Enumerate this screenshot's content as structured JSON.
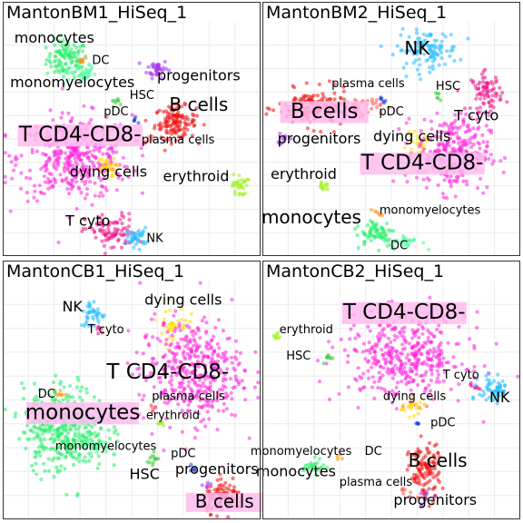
{
  "palette": {
    "monocytes": "#22ee66",
    "monomyelocytes": "#44ff99",
    "DC": "#ff8800",
    "progenitors": "#aa33ee",
    "HSC": "#33cc33",
    "pDC": "#1133dd",
    "B cells": "#ee1111",
    "plasma cells": "#ff5555",
    "T CD4-CD8-": "#ff22dd",
    "dying cells": "#ffdd00",
    "erythroid": "#99ee11",
    "T cyto": "#ee1188",
    "NK": "#22bbff",
    "label_box": "#ffbbee"
  },
  "chart_data": [
    {
      "type": "scatter",
      "title": "MantonBM1_HiSeq_1",
      "xlim": [
        0,
        100
      ],
      "ylim": [
        0,
        100
      ],
      "grid": true,
      "clusters": [
        {
          "name": "monocytes",
          "x": 25,
          "y": 84,
          "sx": 4,
          "sy": 4,
          "n": 110
        },
        {
          "name": "monomyelocytes",
          "x": 30,
          "y": 78,
          "sx": 3,
          "sy": 2,
          "n": 30
        },
        {
          "name": "DC",
          "x": 31,
          "y": 84,
          "sx": 1,
          "sy": 1,
          "n": 6
        },
        {
          "name": "progenitors",
          "x": 60,
          "y": 80,
          "sx": 2,
          "sy": 2,
          "n": 40
        },
        {
          "name": "HSC",
          "x": 44,
          "y": 66,
          "sx": 1,
          "sy": 1,
          "n": 8
        },
        {
          "name": "pDC",
          "x": 51,
          "y": 58,
          "sx": 0.6,
          "sy": 0.6,
          "n": 5
        },
        {
          "name": "B cells",
          "x": 67,
          "y": 57,
          "sx": 4,
          "sy": 3.5,
          "n": 130
        },
        {
          "name": "plasma cells",
          "x": 57,
          "y": 50,
          "sx": 1,
          "sy": 1,
          "n": 6
        },
        {
          "name": "T CD4-CD8-",
          "x": 28,
          "y": 42,
          "sx": 11,
          "sy": 9,
          "n": 420
        },
        {
          "name": "dying cells",
          "x": 40,
          "y": 38,
          "sx": 2,
          "sy": 2,
          "n": 30
        },
        {
          "name": "erythroid",
          "x": 92,
          "y": 30,
          "sx": 1.5,
          "sy": 2.5,
          "n": 30
        },
        {
          "name": "T cyto",
          "x": 42,
          "y": 10,
          "sx": 5,
          "sy": 4,
          "n": 90
        },
        {
          "name": "NK",
          "x": 52,
          "y": 8,
          "sx": 2,
          "sy": 2,
          "n": 40
        }
      ],
      "labels": [
        {
          "text": "monocytes",
          "x": 20,
          "y": 91,
          "size": "md"
        },
        {
          "text": "DC",
          "x": 38,
          "y": 82,
          "size": "sm"
        },
        {
          "text": "progenitors",
          "x": 76,
          "y": 75,
          "size": "md"
        },
        {
          "text": "monomyelocytes",
          "x": 27,
          "y": 72,
          "size": "md"
        },
        {
          "text": "HSC",
          "x": 54,
          "y": 67,
          "size": "sm"
        },
        {
          "text": "B cells",
          "x": 76,
          "y": 62,
          "size": "lg"
        },
        {
          "text": "pDC",
          "x": 44,
          "y": 60,
          "size": "sm"
        },
        {
          "text": "plasma cells",
          "x": 68,
          "y": 48,
          "size": "sm"
        },
        {
          "text": "T CD4-CD8-",
          "x": 30,
          "y": 49,
          "size": "xl",
          "boxed": true
        },
        {
          "text": "dying cells",
          "x": 41,
          "y": 34,
          "size": "md"
        },
        {
          "text": "erythroid",
          "x": 75,
          "y": 32,
          "size": "md"
        },
        {
          "text": "T cyto",
          "x": 33,
          "y": 13,
          "size": "md"
        },
        {
          "text": "NK",
          "x": 59,
          "y": 6,
          "size": "sm"
        }
      ]
    },
    {
      "type": "scatter",
      "title": "MantonBM2_HiSeq_1",
      "xlim": [
        0,
        100
      ],
      "ylim": [
        0,
        100
      ],
      "grid": true,
      "clusters": [
        {
          "name": "NK",
          "x": 64,
          "y": 88,
          "sx": 6,
          "sy": 4,
          "n": 110
        },
        {
          "name": "HSC",
          "x": 68,
          "y": 68,
          "sx": 1,
          "sy": 1,
          "n": 6
        },
        {
          "name": "pDC",
          "x": 47,
          "y": 66,
          "sx": 0.8,
          "sy": 0.8,
          "n": 6
        },
        {
          "name": "T cyto",
          "x": 87,
          "y": 70,
          "sx": 3,
          "sy": 4,
          "n": 80
        },
        {
          "name": "plasma cells",
          "x": 38,
          "y": 64,
          "sx": 4,
          "sy": 2,
          "n": 40
        },
        {
          "name": "B cells",
          "x": 20,
          "y": 63,
          "sx": 7,
          "sy": 4,
          "n": 170
        },
        {
          "name": "progenitors",
          "x": 8,
          "y": 50,
          "sx": 1.5,
          "sy": 1.5,
          "n": 10
        },
        {
          "name": "dying cells",
          "x": 60,
          "y": 48,
          "sx": 2,
          "sy": 2,
          "n": 25
        },
        {
          "name": "T CD4-CD8-",
          "x": 74,
          "y": 44,
          "sx": 7,
          "sy": 8,
          "n": 300
        },
        {
          "name": "erythroid",
          "x": 24,
          "y": 30,
          "sx": 1,
          "sy": 1.5,
          "n": 12
        },
        {
          "name": "monocytes",
          "x": 44,
          "y": 10,
          "sx": 4,
          "sy": 3,
          "n": 70
        },
        {
          "name": "monomyelocytes",
          "x": 56,
          "y": 6,
          "sx": 3,
          "sy": 1.5,
          "n": 25
        },
        {
          "name": "DC",
          "x": 45,
          "y": 18,
          "sx": 0.8,
          "sy": 0.8,
          "n": 6
        }
      ],
      "labels": [
        {
          "text": "NK",
          "x": 60,
          "y": 86,
          "size": "lg"
        },
        {
          "text": "plasma cells",
          "x": 41,
          "y": 72,
          "size": "sm"
        },
        {
          "text": "HSC",
          "x": 72,
          "y": 71,
          "size": "sm"
        },
        {
          "text": "B cells",
          "x": 24,
          "y": 59,
          "size": "xl",
          "boxed": true
        },
        {
          "text": "pDC",
          "x": 50,
          "y": 60,
          "size": "sm"
        },
        {
          "text": "T cyto",
          "x": 83,
          "y": 58,
          "size": "md"
        },
        {
          "text": "progenitors",
          "x": 22,
          "y": 48,
          "size": "md"
        },
        {
          "text": "dying cells",
          "x": 58,
          "y": 49,
          "size": "md"
        },
        {
          "text": "T CD4-CD8-",
          "x": 62,
          "y": 37,
          "size": "xl",
          "boxed": true
        },
        {
          "text": "erythroid",
          "x": 16,
          "y": 33,
          "size": "md"
        },
        {
          "text": "monomyelocytes",
          "x": 65,
          "y": 18,
          "size": "sm"
        },
        {
          "text": "monocytes",
          "x": 19,
          "y": 14,
          "size": "lg"
        },
        {
          "text": "DC",
          "x": 53,
          "y": 3,
          "size": "sm"
        }
      ]
    },
    {
      "type": "scatter",
      "title": "MantonCB1_HiSeq_1",
      "xlim": [
        0,
        100
      ],
      "ylim": [
        0,
        100
      ],
      "grid": true,
      "clusters": [
        {
          "name": "NK",
          "x": 35,
          "y": 86,
          "sx": 2.5,
          "sy": 3,
          "n": 40
        },
        {
          "name": "T cyto",
          "x": 38,
          "y": 80,
          "sx": 1,
          "sy": 1,
          "n": 6
        },
        {
          "name": "dying cells",
          "x": 66,
          "y": 82,
          "sx": 3,
          "sy": 4,
          "n": 40
        },
        {
          "name": "T CD4-CD8-",
          "x": 73,
          "y": 62,
          "sx": 10,
          "sy": 11,
          "n": 420
        },
        {
          "name": "plasma cells",
          "x": 58,
          "y": 46,
          "sx": 1,
          "sy": 1,
          "n": 6
        },
        {
          "name": "erythroid",
          "x": 62,
          "y": 40,
          "sx": 1,
          "sy": 1,
          "n": 6
        },
        {
          "name": "DC",
          "x": 22,
          "y": 53,
          "sx": 1,
          "sy": 1,
          "n": 8
        },
        {
          "name": "monocytes",
          "x": 24,
          "y": 38,
          "sx": 8,
          "sy": 9,
          "n": 380
        },
        {
          "name": "monomyelocytes",
          "x": 36,
          "y": 30,
          "sx": 3,
          "sy": 2,
          "n": 30
        },
        {
          "name": "HSC",
          "x": 58,
          "y": 25,
          "sx": 1,
          "sy": 2,
          "n": 12
        },
        {
          "name": "pDC",
          "x": 74,
          "y": 21,
          "sx": 1,
          "sy": 1,
          "n": 5
        },
        {
          "name": "progenitors",
          "x": 79,
          "y": 14,
          "sx": 1,
          "sy": 1,
          "n": 6
        },
        {
          "name": "B cells",
          "x": 86,
          "y": 9,
          "sx": 4,
          "sy": 3,
          "n": 110
        }
      ],
      "labels": [
        {
          "text": "NK",
          "x": 27,
          "y": 87,
          "size": "md"
        },
        {
          "text": "dying cells",
          "x": 70,
          "y": 90,
          "size": "md"
        },
        {
          "text": "T cyto",
          "x": 40,
          "y": 78,
          "size": "sm"
        },
        {
          "text": "T CD4-CD8-",
          "x": 64,
          "y": 59,
          "size": "xl"
        },
        {
          "text": "DC",
          "x": 17,
          "y": 51,
          "size": "sm"
        },
        {
          "text": "plasma cells",
          "x": 72,
          "y": 50,
          "size": "sm"
        },
        {
          "text": "monocytes",
          "x": 31,
          "y": 42,
          "size": "xl",
          "boxed": true
        },
        {
          "text": "erythroid",
          "x": 66,
          "y": 42,
          "size": "sm"
        },
        {
          "text": "monomyelocytes",
          "x": 40,
          "y": 29,
          "size": "sm"
        },
        {
          "text": "pDC",
          "x": 70,
          "y": 26,
          "size": "sm"
        },
        {
          "text": "HSC",
          "x": 55,
          "y": 17,
          "size": "md"
        },
        {
          "text": "progenitors",
          "x": 83,
          "y": 19,
          "size": "md"
        },
        {
          "text": "B cells",
          "x": 86,
          "y": 5,
          "size": "lg",
          "boxed": true
        }
      ]
    },
    {
      "type": "scatter",
      "title": "MantonCB2_HiSeq_1",
      "xlim": [
        0,
        100
      ],
      "ylim": [
        0,
        100
      ],
      "grid": true,
      "clusters": [
        {
          "name": "T CD4-CD8-",
          "x": 55,
          "y": 68,
          "sx": 12,
          "sy": 9,
          "n": 420
        },
        {
          "name": "erythroid",
          "x": 6,
          "y": 77,
          "sx": 1,
          "sy": 1,
          "n": 8
        },
        {
          "name": "HSC",
          "x": 26,
          "y": 68,
          "sx": 1,
          "sy": 1,
          "n": 8
        },
        {
          "name": "T cyto",
          "x": 82,
          "y": 56,
          "sx": 1,
          "sy": 1,
          "n": 8
        },
        {
          "name": "NK",
          "x": 90,
          "y": 54,
          "sx": 3,
          "sy": 3,
          "n": 60
        },
        {
          "name": "dying cells",
          "x": 58,
          "y": 47,
          "sx": 2.5,
          "sy": 1.5,
          "n": 25
        },
        {
          "name": "pDC",
          "x": 60,
          "y": 40,
          "sx": 0.8,
          "sy": 0.8,
          "n": 4
        },
        {
          "name": "monocytes",
          "x": 20,
          "y": 22,
          "sx": 2,
          "sy": 1.5,
          "n": 25
        },
        {
          "name": "DC",
          "x": 30,
          "y": 26,
          "sx": 0.8,
          "sy": 0.8,
          "n": 4
        },
        {
          "name": "B cells",
          "x": 63,
          "y": 20,
          "sx": 3,
          "sy": 6,
          "n": 120
        },
        {
          "name": "plasma cells",
          "x": 55,
          "y": 12,
          "sx": 1,
          "sy": 1,
          "n": 6
        },
        {
          "name": "progenitors",
          "x": 63,
          "y": 9,
          "sx": 1.5,
          "sy": 1.5,
          "n": 10
        }
      ],
      "labels": [
        {
          "text": "T CD4-CD8-",
          "x": 55,
          "y": 84,
          "size": "xl",
          "boxed": true
        },
        {
          "text": "erythroid",
          "x": 17,
          "y": 78,
          "size": "sm"
        },
        {
          "text": "HSC",
          "x": 14,
          "y": 67,
          "size": "sm"
        },
        {
          "text": "T cyto",
          "x": 77,
          "y": 59,
          "size": "sm"
        },
        {
          "text": "NK",
          "x": 92,
          "y": 49,
          "size": "md"
        },
        {
          "text": "dying cells",
          "x": 59,
          "y": 50,
          "size": "sm"
        },
        {
          "text": "pDC",
          "x": 70,
          "y": 39,
          "size": "sm"
        },
        {
          "text": "monomyelocytes",
          "x": 15,
          "y": 27,
          "size": "sm"
        },
        {
          "text": "DC",
          "x": 43,
          "y": 27,
          "size": "sm"
        },
        {
          "text": "B cells",
          "x": 68,
          "y": 22,
          "size": "lg"
        },
        {
          "text": "monocytes",
          "x": 13,
          "y": 18,
          "size": "md"
        },
        {
          "text": "plasma cells",
          "x": 44,
          "y": 14,
          "size": "sm"
        },
        {
          "text": "progenitors",
          "x": 67,
          "y": 6,
          "size": "md"
        }
      ]
    }
  ]
}
